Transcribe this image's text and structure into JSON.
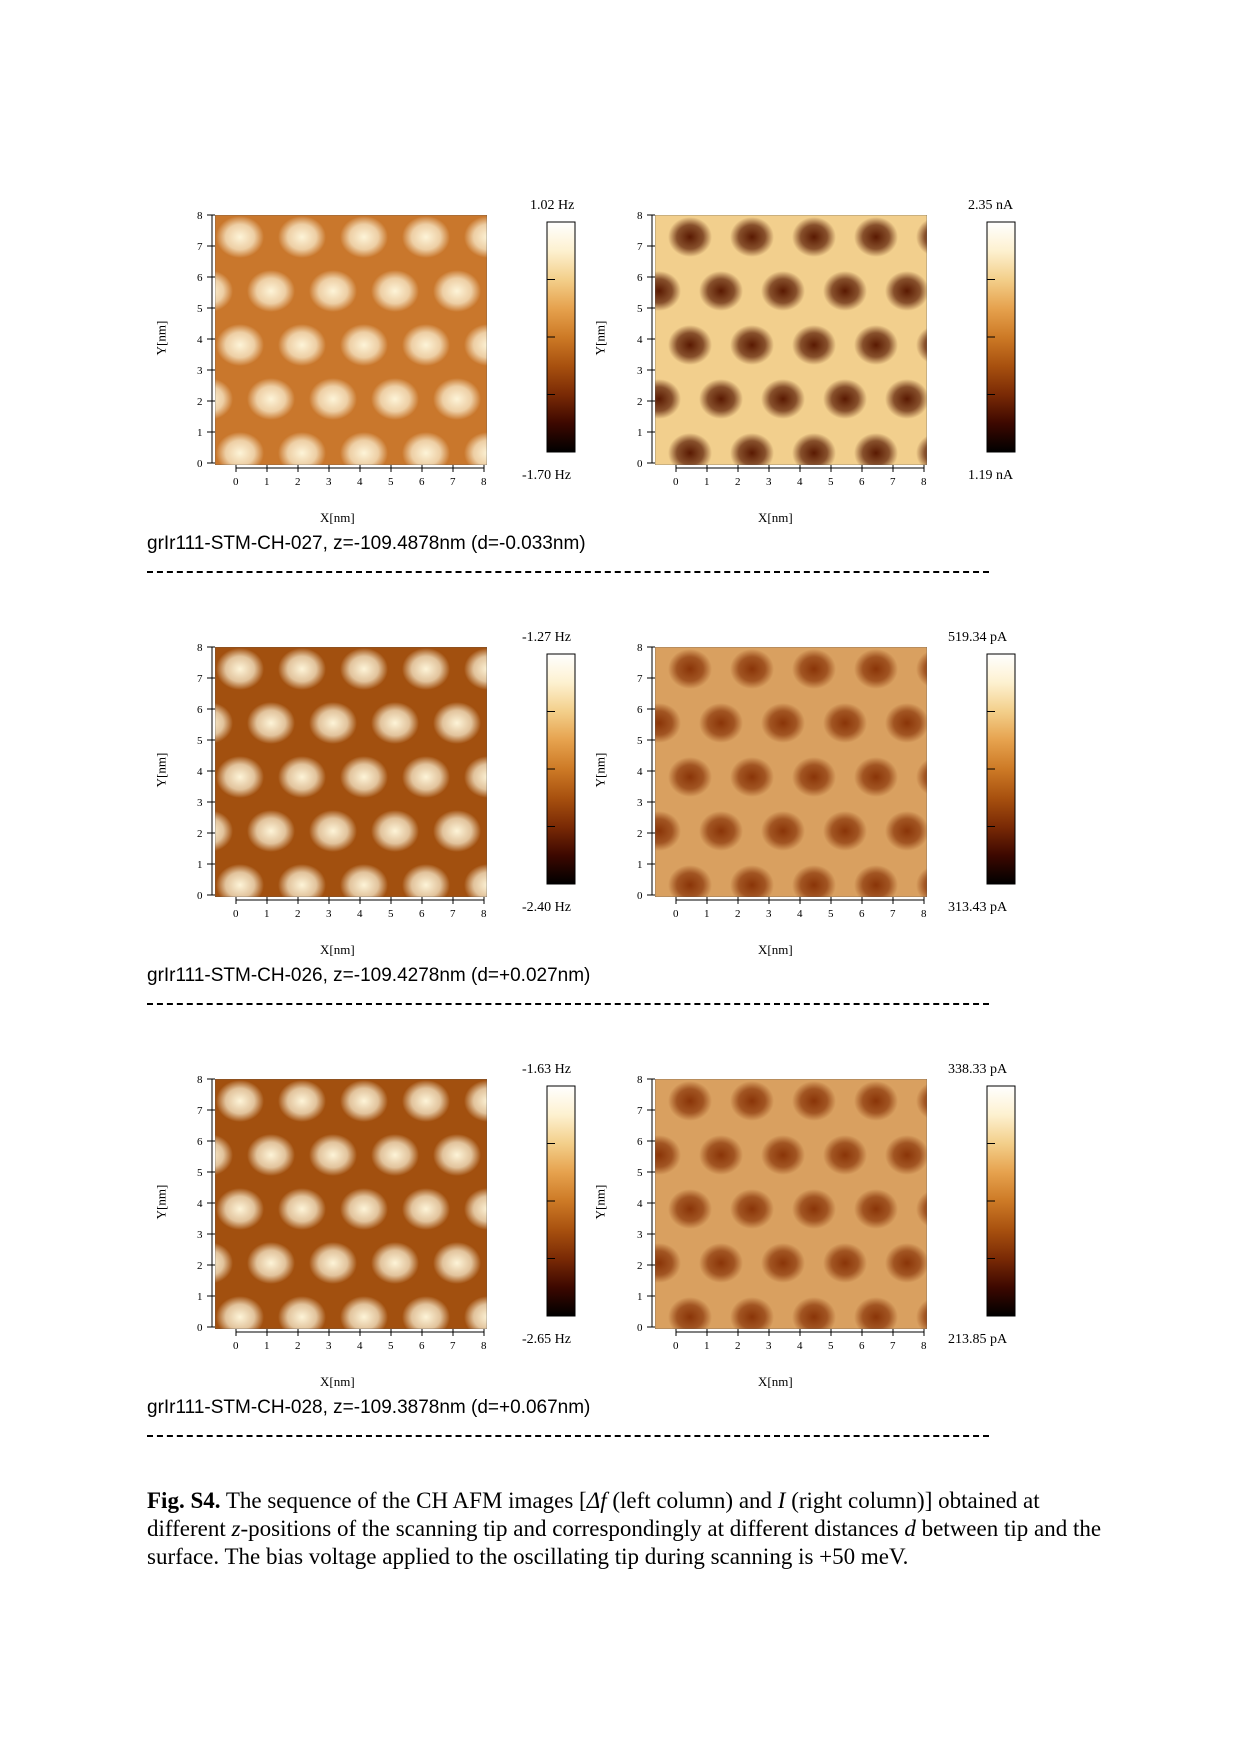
{
  "rows": [
    {
      "caption": "grIr111-STM-CH-027, z=-109.4878nm (d=-0.033nm)",
      "afm": {
        "cb_max": "1.02 Hz",
        "cb_min": "-1.70 Hz",
        "pattern": "afm-bright-spots"
      },
      "stm": {
        "cb_max": "2.35 nA",
        "cb_min": "1.19 nA",
        "pattern": "stm-dark-spots"
      }
    },
    {
      "caption": "grIr111-STM-CH-026, z=-109.4278nm (d=+0.027nm)",
      "afm": {
        "cb_max": "-1.27 Hz",
        "cb_min": "-2.40 Hz",
        "pattern": "afm-bright-spots"
      },
      "stm": {
        "cb_max": "519.34 pA",
        "cb_min": "313.43 pA",
        "pattern": "stm-dark-spots"
      }
    },
    {
      "caption": "grIr111-STM-CH-028, z=-109.3878nm (d=+0.067nm)",
      "afm": {
        "cb_max": "-1.63 Hz",
        "cb_min": "-2.65 Hz",
        "pattern": "afm-bright-spots"
      },
      "stm": {
        "cb_max": "338.33 pA",
        "cb_min": "213.85 pA",
        "pattern": "stm-dark-spots"
      }
    }
  ],
  "axis": {
    "xlabel": "X[nm]",
    "ylabel": "Y[nm]",
    "ticks": [
      "0",
      "1",
      "2",
      "3",
      "4",
      "5",
      "6",
      "7",
      "8"
    ]
  },
  "figure_caption": {
    "label": "Fig. S4.",
    "text_1": " The sequence of the CH AFM images [",
    "delta_f": "Δf",
    "text_2": " (left column) and ",
    "current": "I",
    "text_3": " (right column)] obtained at different ",
    "z": "z",
    "text_4": "-positions of the scanning tip and correspondingly at different distances ",
    "d": "d",
    "text_5": " between tip and the surface. The bias voltage applied to the oscillating tip during scanning is +50 meV."
  },
  "colors": {
    "colormap": [
      "#000000",
      "#3d0800",
      "#7a2a05",
      "#a8510f",
      "#cd7a26",
      "#e6a24e",
      "#f3cf8a",
      "#fdf1d0",
      "#ffffff"
    ]
  }
}
